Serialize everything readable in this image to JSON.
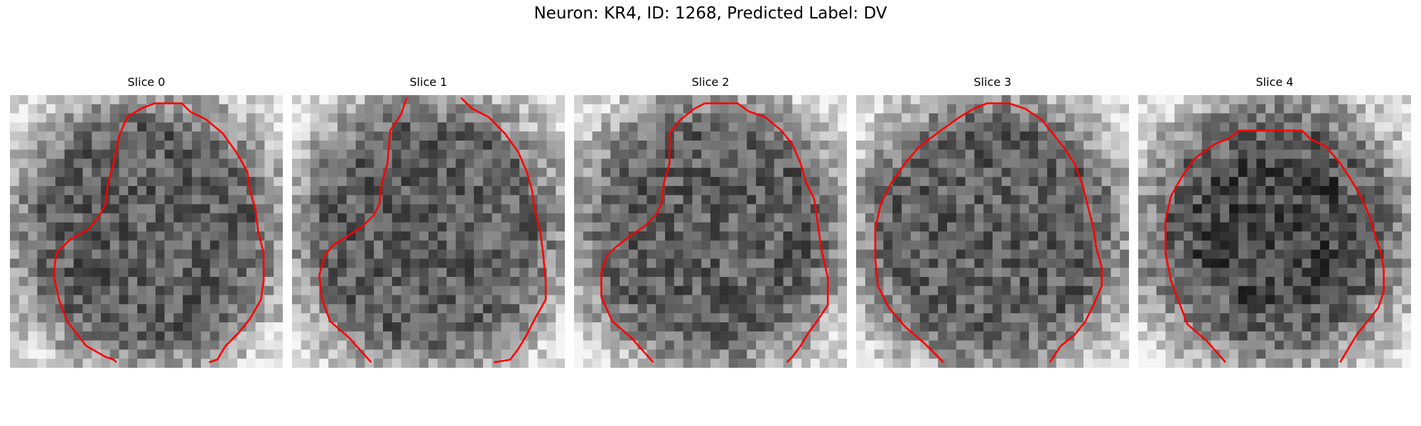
{
  "figure": {
    "suptitle": "Neuron: KR4, ID: 1268, Predicted Label: DV"
  },
  "panels": [
    {
      "title": "Slice 0"
    },
    {
      "title": "Slice 1"
    },
    {
      "title": "Slice 2"
    },
    {
      "title": "Slice 3"
    },
    {
      "title": "Slice 4"
    }
  ],
  "colors": {
    "contour": "#ff0000"
  }
}
